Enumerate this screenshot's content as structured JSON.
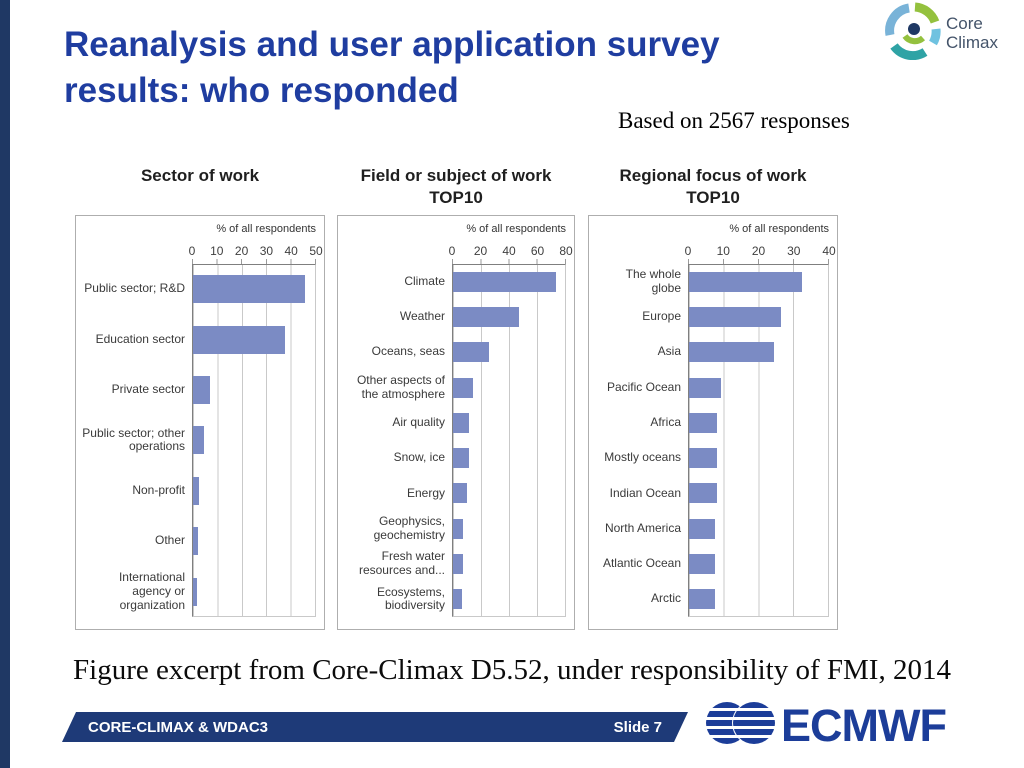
{
  "slide": {
    "title_line1": "Reanalysis and user application survey",
    "title_line2": "results: who responded",
    "subtitle": "Based on 2567 responses",
    "caption": "Figure excerpt from Core-Climax D5.52, under responsibility of FMI, 2014"
  },
  "logos": {
    "core_climax": {
      "line1": "Core",
      "line2": "Climax"
    },
    "ecmwf": {
      "text": "ECMWF"
    }
  },
  "footer": {
    "left": "CORE-CLIMAX & WDAC3",
    "right": "Slide 7"
  },
  "colors": {
    "bar": "#7b8bc4",
    "title_blue": "#1f3da0",
    "footer_navy": "#1e3a78",
    "left_stripe": "#1f3864",
    "ecmwf_blue": "#1c3d99"
  },
  "chart_data": [
    {
      "type": "bar",
      "orientation": "horizontal",
      "title": "Sector of work",
      "title_line2": "",
      "axis_label": "% of all respondents",
      "xlim": [
        0,
        50
      ],
      "ticks": [
        0,
        10,
        20,
        30,
        40,
        50
      ],
      "grid": true,
      "categories": [
        "Public sector; R&D",
        "Education sector",
        "Private sector",
        "Public sector; other operations",
        "Non-profit",
        "Other",
        "International agency or organization"
      ],
      "values": [
        45,
        37,
        7,
        4.5,
        2.5,
        2,
        1.5
      ]
    },
    {
      "type": "bar",
      "orientation": "horizontal",
      "title": "Field or subject of work",
      "title_line2": "TOP10",
      "axis_label": "% of all respondents",
      "xlim": [
        0,
        80
      ],
      "ticks": [
        0,
        20,
        40,
        60,
        80
      ],
      "grid": true,
      "categories": [
        "Climate",
        "Weather",
        "Oceans, seas",
        "Other aspects of the atmosphere",
        "Air quality",
        "Snow, ice",
        "Energy",
        "Geophysics, geochemistry",
        "Fresh water resources and...",
        "Ecosystems, biodiversity"
      ],
      "values": [
        72,
        46,
        25,
        14,
        11,
        11,
        10,
        7,
        7,
        6
      ]
    },
    {
      "type": "bar",
      "orientation": "horizontal",
      "title": "Regional focus of work",
      "title_line2": "TOP10",
      "axis_label": "% of all respondents",
      "xlim": [
        0,
        40
      ],
      "ticks": [
        0,
        10,
        20,
        30,
        40
      ],
      "grid": true,
      "categories": [
        "The whole globe",
        "Europe",
        "Asia",
        "Pacific Ocean",
        "Africa",
        "Mostly oceans",
        "Indian Ocean",
        "North America",
        "Atlantic Ocean",
        "Arctic"
      ],
      "values": [
        32,
        26,
        24,
        9,
        8,
        8,
        8,
        7.5,
        7.5,
        7.5
      ]
    }
  ]
}
